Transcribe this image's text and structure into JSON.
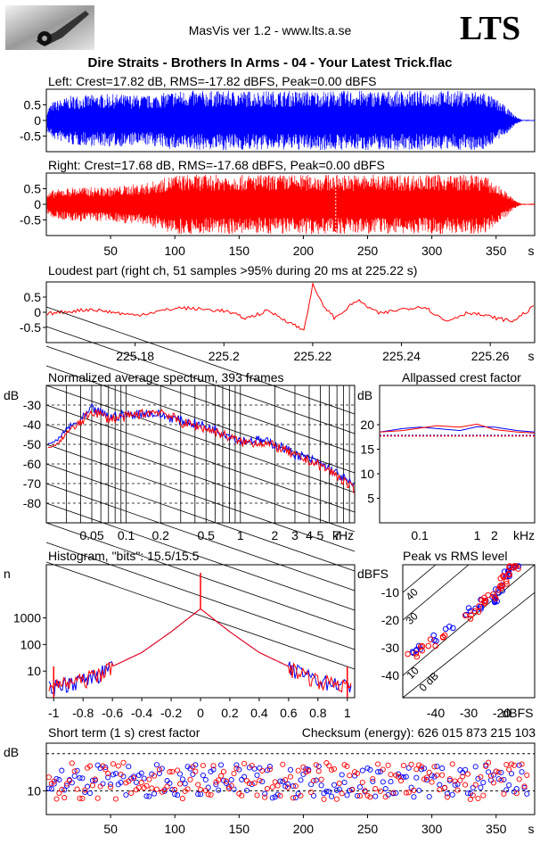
{
  "header": {
    "app": "MasVis ver 1.2 - www.lts.a.se",
    "brand": "LTS",
    "file": "Dire Straits - Brothers In Arms - 04 - Your Latest Trick.flac"
  },
  "colors": {
    "left": "#0000ff",
    "right": "#ff0000",
    "black": "#000000"
  },
  "waveform": {
    "left_title": "Left: Crest=17.82 dB, RMS=-17.82 dBFS, Peak=0.00 dBFS",
    "right_title": "Right: Crest=17.68 dB, RMS=-17.68 dBFS, Peak=0.00 dBFS",
    "yticks": [
      "0.5",
      "0",
      "-0.5"
    ],
    "xticks": [
      "50",
      "100",
      "150",
      "200",
      "250",
      "300",
      "350"
    ],
    "xunit": "s",
    "marker_s": 225.22
  },
  "loudest": {
    "title": "Loudest part (right ch, 51 samples >95% during 20 ms at 225.22 s)",
    "yticks": [
      "0.5",
      "0",
      "-0.5"
    ],
    "xticks": [
      "225.18",
      "225.2",
      "225.22",
      "225.24",
      "225.26"
    ],
    "xunit": "s"
  },
  "spectrum": {
    "title": "Normalized average spectrum, 393 frames",
    "ylabel": "dB",
    "yticks": [
      "-30",
      "-40",
      "-50",
      "-60",
      "-70",
      "-80"
    ],
    "xticks": [
      "0.05",
      "0.1",
      "0.2",
      "0.5",
      "1",
      "2",
      "3",
      "4",
      "5",
      "7"
    ],
    "xunit": "kHz"
  },
  "allpass": {
    "title": "Allpassed crest factor",
    "ylabel": "dB",
    "yticks": [
      "20",
      "15",
      "10",
      "5"
    ],
    "xticks": [
      "0.1",
      "1",
      "2"
    ],
    "xunit": "kHz"
  },
  "histogram": {
    "title": "Histogram, \"bits\": 15.5/15.5",
    "ylabel": "n",
    "yticks": [
      "1000",
      "100",
      "10"
    ],
    "xticks": [
      "-1",
      "-0.8",
      "-0.6",
      "-0.4",
      "-0.2",
      "0",
      "0.2",
      "0.4",
      "0.6",
      "0.8",
      "1"
    ]
  },
  "peakrms": {
    "title": "Peak vs RMS level",
    "ylabel": "dBFS",
    "xunit": "dBFS",
    "yticks": [
      "-10",
      "-20",
      "-30",
      "-40"
    ],
    "xticks": [
      "-40",
      "-30",
      "-20"
    ],
    "diag_labels": [
      "40",
      "30",
      "10",
      "0 dB"
    ]
  },
  "crest": {
    "title": "Short term (1 s) crest factor",
    "checksum": "Checksum (energy):   626 015 873 215 103",
    "ylabel": "dB",
    "yticks": [
      "10"
    ],
    "xticks": [
      "50",
      "100",
      "150",
      "200",
      "250",
      "300",
      "350"
    ],
    "xunit": "s"
  },
  "chart_data": [
    {
      "type": "area",
      "title": "Left: Crest=17.82 dB, RMS=-17.82 dBFS, Peak=0.00 dBFS",
      "xlim": [
        0,
        380
      ],
      "ylim": [
        -1,
        1
      ],
      "series": [
        {
          "name": "Left",
          "x": [
            0,
            5,
            20,
            50,
            80,
            100,
            150,
            200,
            250,
            300,
            340,
            355,
            365,
            370
          ],
          "envelope": [
            0.35,
            0.6,
            0.8,
            0.85,
            0.8,
            0.95,
            0.95,
            0.95,
            0.95,
            0.95,
            0.95,
            0.55,
            0.15,
            0.02
          ]
        }
      ]
    },
    {
      "type": "area",
      "title": "Right: Crest=17.68 dB, RMS=-17.68 dBFS, Peak=0.00 dBFS",
      "xlim": [
        0,
        380
      ],
      "ylim": [
        -1,
        1
      ],
      "series": [
        {
          "name": "Right",
          "x": [
            0,
            5,
            20,
            50,
            80,
            100,
            150,
            200,
            250,
            300,
            340,
            355,
            365,
            370
          ],
          "envelope": [
            0.3,
            0.45,
            0.55,
            0.55,
            0.7,
            0.95,
            0.95,
            0.95,
            0.95,
            0.95,
            0.95,
            0.5,
            0.12,
            0.02
          ]
        }
      ]
    },
    {
      "type": "line",
      "title": "Loudest part (right ch, 51 samples >95% during 20 ms at 225.22 s)",
      "xlim": [
        225.16,
        225.27
      ],
      "ylim": [
        -1,
        1
      ],
      "x": [
        225.16,
        225.17,
        225.18,
        225.19,
        225.2,
        225.205,
        225.21,
        225.215,
        225.218,
        225.22,
        225.222,
        225.225,
        225.23,
        225.235,
        225.24,
        225.245,
        225.25,
        225.255,
        225.26,
        225.265,
        225.27
      ],
      "series": [
        {
          "name": "right",
          "values": [
            -0.05,
            0.1,
            -0.1,
            0.15,
            0.05,
            -0.2,
            0.05,
            -0.35,
            -0.6,
            0.9,
            0.3,
            -0.2,
            0.4,
            -0.05,
            0.1,
            0.2,
            -0.3,
            0.0,
            -0.15,
            -0.3,
            0.2
          ]
        }
      ]
    },
    {
      "type": "line",
      "title": "Normalized average spectrum, 393 frames",
      "ylabel": "dB",
      "xscale": "log",
      "xlim": [
        0.02,
        10
      ],
      "ylim": [
        -90,
        -20
      ],
      "x": [
        0.02,
        0.025,
        0.03,
        0.04,
        0.05,
        0.07,
        0.1,
        0.15,
        0.2,
        0.3,
        0.5,
        0.7,
        1,
        1.5,
        2,
        3,
        5,
        7,
        10
      ],
      "series": [
        {
          "name": "L",
          "values": [
            -50,
            -48,
            -42,
            -38,
            -32,
            -36,
            -35,
            -34,
            -35,
            -38,
            -41,
            -44,
            -48,
            -48,
            -50,
            -55,
            -60,
            -65,
            -72
          ]
        },
        {
          "name": "R",
          "values": [
            -52,
            -50,
            -44,
            -39,
            -33,
            -37,
            -36,
            -34,
            -33,
            -39,
            -42,
            -45,
            -49,
            -49,
            -51,
            -56,
            -61,
            -66,
            -74
          ]
        }
      ]
    },
    {
      "type": "line",
      "title": "Allpassed crest factor",
      "ylabel": "dB",
      "xscale": "log",
      "xlim": [
        0.02,
        10
      ],
      "ylim": [
        0,
        28
      ],
      "x": [
        0.02,
        0.05,
        0.1,
        0.2,
        0.5,
        1,
        2,
        5,
        10
      ],
      "series": [
        {
          "name": "L",
          "values": [
            18.5,
            19.2,
            19.5,
            19.2,
            18.8,
            19.6,
            19.5,
            18.8,
            18.5
          ]
        },
        {
          "name": "R",
          "values": [
            18.5,
            18.8,
            19.3,
            19.8,
            19.5,
            20.1,
            19.0,
            18.5,
            18.3
          ]
        }
      ],
      "reference": [
        17.82,
        17.68
      ]
    },
    {
      "type": "line",
      "title": "Histogram, \"bits\": 15.5/15.5",
      "ylabel": "n",
      "yscale": "log",
      "xlim": [
        -1.05,
        1.05
      ],
      "ylim": [
        1,
        100000
      ],
      "x": [
        -1,
        -0.8,
        -0.6,
        -0.4,
        -0.2,
        0,
        0.2,
        0.4,
        0.6,
        0.8,
        1
      ],
      "series": [
        {
          "name": "L",
          "values": [
            3,
            5,
            15,
            50,
            300,
            2200,
            300,
            50,
            15,
            5,
            3
          ]
        },
        {
          "name": "R",
          "values": [
            3,
            5,
            15,
            50,
            300,
            2200,
            300,
            50,
            15,
            5,
            3
          ]
        }
      ]
    },
    {
      "type": "scatter",
      "title": "Peak vs RMS level",
      "xlim": [
        -50,
        -10
      ],
      "ylim": [
        -48,
        0
      ],
      "series": [
        {
          "name": "L",
          "points": [
            [
              -47,
              -31
            ],
            [
              -45,
              -30
            ],
            [
              -40,
              -26
            ],
            [
              -36,
              -23
            ],
            [
              -30,
              -17
            ],
            [
              -27,
              -16
            ],
            [
              -25,
              -14
            ],
            [
              -23,
              -13
            ],
            [
              -22,
              -12
            ],
            [
              -21,
              -10
            ],
            [
              -20,
              -8
            ],
            [
              -19,
              -5
            ],
            [
              -18,
              -3
            ],
            [
              -17,
              -1
            ],
            [
              -16,
              0
            ]
          ]
        },
        {
          "name": "R",
          "points": [
            [
              -47,
              -32
            ],
            [
              -44,
              -30
            ],
            [
              -41,
              -28
            ],
            [
              -38,
              -25
            ],
            [
              -30,
              -18
            ],
            [
              -27,
              -16
            ],
            [
              -25,
              -14
            ],
            [
              -24,
              -12
            ],
            [
              -22,
              -11
            ],
            [
              -21,
              -9
            ],
            [
              -20,
              -7
            ],
            [
              -19,
              -5
            ],
            [
              -18,
              -3
            ],
            [
              -17,
              -1
            ],
            [
              -16,
              0
            ]
          ]
        }
      ]
    },
    {
      "type": "scatter",
      "title": "Short term (1 s) crest factor",
      "ylabel": "dB",
      "xlim": [
        0,
        380
      ],
      "ylim": [
        5,
        20
      ],
      "series": [
        {
          "name": "L",
          "mean": 12,
          "range": [
            8,
            15
          ]
        },
        {
          "name": "R",
          "mean": 12,
          "range": [
            8,
            16
          ]
        }
      ]
    }
  ]
}
